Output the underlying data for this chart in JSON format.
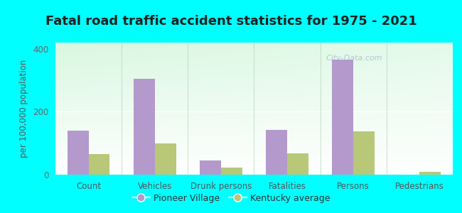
{
  "title": "Fatal road traffic accident statistics for 1975 - 2021",
  "ylabel": "per 100,000 population",
  "categories": [
    "Count",
    "Vehicles",
    "Drunk persons",
    "Fatalities",
    "Persons",
    "Pedestrians"
  ],
  "pioneer_village": [
    140,
    305,
    45,
    142,
    365,
    0
  ],
  "kentucky_average": [
    65,
    100,
    22,
    68,
    138,
    8
  ],
  "pioneer_color": "#b399cc",
  "kentucky_color": "#b8c878",
  "ylim": [
    0,
    420
  ],
  "yticks": [
    0,
    200,
    400
  ],
  "background_color": "#00ffff",
  "legend_labels": [
    "Pioneer Village",
    "Kentucky average"
  ],
  "bar_width": 0.32,
  "title_fontsize": 13,
  "tick_fontsize": 8.5,
  "ylabel_fontsize": 8.5,
  "watermark": "City-Data.com"
}
